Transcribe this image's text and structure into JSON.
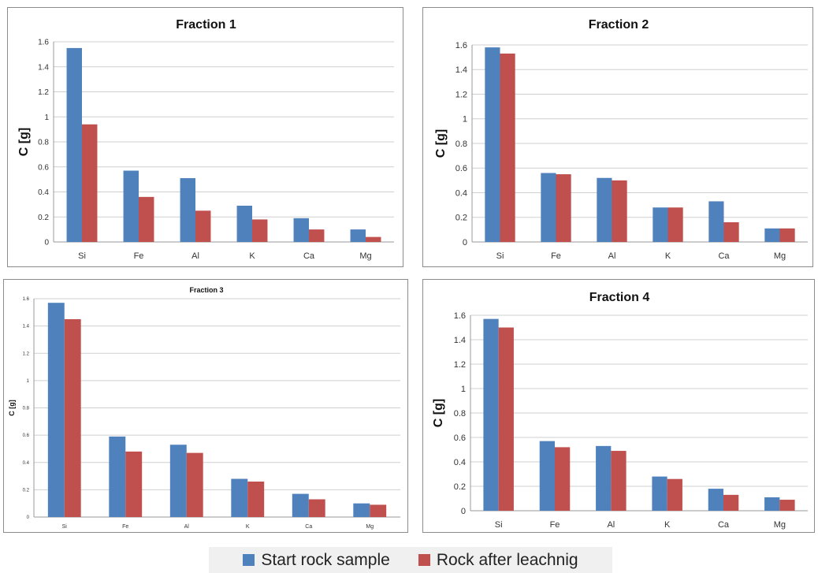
{
  "colors": {
    "start": "#4F81BD",
    "after": "#C0504D"
  },
  "legend": {
    "start_label": "Start rock sample",
    "after_label": "Rock after leachnig"
  },
  "chart_data": [
    {
      "type": "bar",
      "title": "Fraction 1",
      "ylabel": "C [g]",
      "categories": [
        "Si",
        "Fe",
        "Al",
        "K",
        "Ca",
        "Mg"
      ],
      "ylim": [
        0,
        1.6
      ],
      "yticks": [
        0,
        0.2,
        0.4,
        0.6,
        0.8,
        1,
        1.2,
        1.4,
        1.6
      ],
      "series": [
        {
          "name": "Start rock sample",
          "values": [
            1.55,
            0.57,
            0.51,
            0.29,
            0.19,
            0.1
          ]
        },
        {
          "name": "Rock after leachnig",
          "values": [
            0.94,
            0.36,
            0.25,
            0.18,
            0.1,
            0.04
          ]
        }
      ]
    },
    {
      "type": "bar",
      "title": "Fraction 2",
      "ylabel": "C [g]",
      "categories": [
        "Si",
        "Fe",
        "Al",
        "K",
        "Ca",
        "Mg"
      ],
      "ylim": [
        0,
        1.6
      ],
      "yticks": [
        0,
        0.2,
        0.4,
        0.6,
        0.8,
        1,
        1.2,
        1.4,
        1.6
      ],
      "series": [
        {
          "name": "Start rock sample",
          "values": [
            1.58,
            0.56,
            0.52,
            0.28,
            0.33,
            0.11
          ]
        },
        {
          "name": "Rock after leachnig",
          "values": [
            1.53,
            0.55,
            0.5,
            0.28,
            0.16,
            0.11
          ]
        }
      ]
    },
    {
      "type": "bar",
      "title": "Fraction 3",
      "ylabel": "C [g]",
      "categories": [
        "Si",
        "Fe",
        "Al",
        "K",
        "Ca",
        "Mg"
      ],
      "ylim": [
        0,
        1.6
      ],
      "yticks": [
        0,
        0.2,
        0.4,
        0.6,
        0.8,
        1,
        1.2,
        1.4,
        1.6
      ],
      "series": [
        {
          "name": "Start rock sample",
          "values": [
            1.57,
            0.59,
            0.53,
            0.28,
            0.17,
            0.1
          ]
        },
        {
          "name": "Rock after leachnig",
          "values": [
            1.45,
            0.48,
            0.47,
            0.26,
            0.13,
            0.09
          ]
        }
      ]
    },
    {
      "type": "bar",
      "title": "Fraction 4",
      "ylabel": "C [g]",
      "categories": [
        "Si",
        "Fe",
        "Al",
        "K",
        "Ca",
        "Mg"
      ],
      "ylim": [
        0,
        1.6
      ],
      "yticks": [
        0,
        0.2,
        0.4,
        0.6,
        0.8,
        1,
        1.2,
        1.4,
        1.6
      ],
      "series": [
        {
          "name": "Start rock sample",
          "values": [
            1.57,
            0.57,
            0.53,
            0.28,
            0.18,
            0.11
          ]
        },
        {
          "name": "Rock after leachnig",
          "values": [
            1.5,
            0.52,
            0.49,
            0.26,
            0.13,
            0.09
          ]
        }
      ]
    }
  ]
}
